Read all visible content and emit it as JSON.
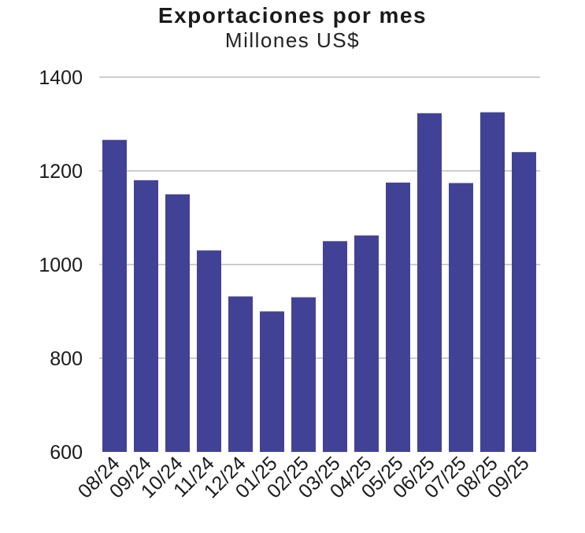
{
  "chart_data": {
    "type": "bar",
    "title": "Exportaciones por mes",
    "subtitle": "Millones US$",
    "xlabel": "",
    "ylabel": "",
    "categories": [
      "08/24",
      "09/24",
      "10/24",
      "11/24",
      "12/24",
      "01/25",
      "02/25",
      "03/25",
      "04/25",
      "05/25",
      "06/25",
      "07/25",
      "08/25",
      "09/25"
    ],
    "values": [
      1266,
      1180,
      1150,
      1030,
      932,
      900,
      930,
      1050,
      1062,
      1175,
      1323,
      1174,
      1325,
      1240
    ],
    "ylim": [
      600,
      1400
    ],
    "yticks": [
      600,
      800,
      1000,
      1200,
      1400
    ],
    "grid": true,
    "bar_color": "#414296",
    "grid_color": "#cccccc"
  }
}
